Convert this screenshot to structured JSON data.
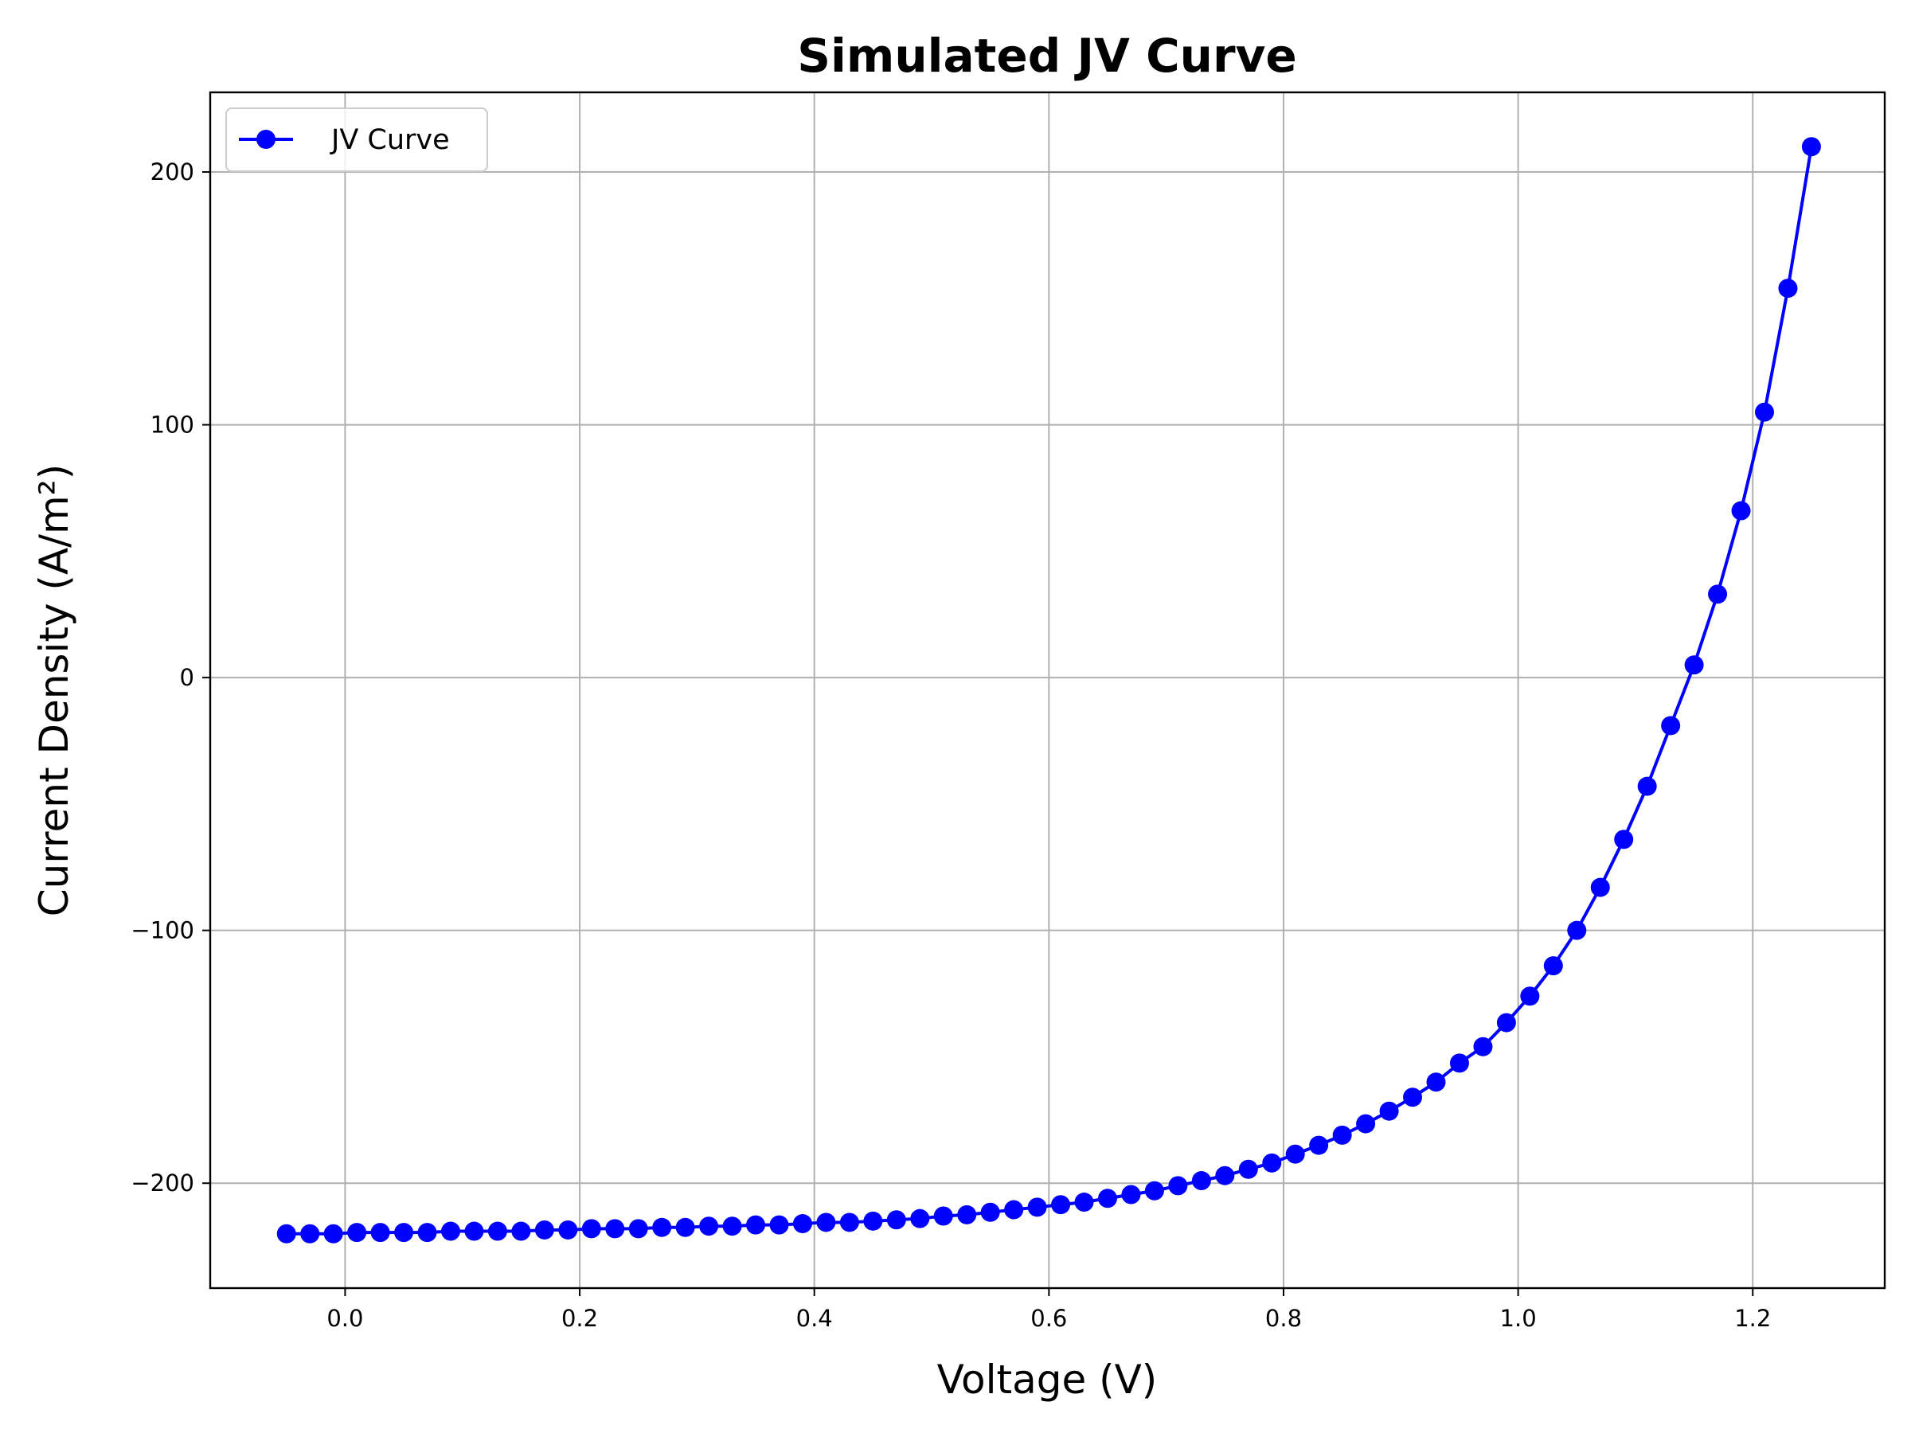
{
  "chart_data": {
    "type": "line",
    "title": "Simulated JV Curve",
    "xlabel": "Voltage (V)",
    "ylabel": "Current Density (A/m²)",
    "xlim": [
      -0.115,
      1.3125
    ],
    "ylim": [
      -241.5,
      231.5
    ],
    "xticks": [
      0.0,
      0.2,
      0.4,
      0.6,
      0.8,
      1.0,
      1.2
    ],
    "xtick_labels": [
      "0.0",
      "0.2",
      "0.4",
      "0.6",
      "0.8",
      "1.0",
      "1.2"
    ],
    "yticks": [
      -200,
      -100,
      0,
      100,
      200
    ],
    "ytick_labels": [
      "−200",
      "−100",
      "0",
      "100",
      "200"
    ],
    "grid": true,
    "legend_position": "upper-left",
    "colors": {
      "series": "#0000ff",
      "grid": "#b0b0b0",
      "frame": "#000000"
    },
    "series": [
      {
        "name": "JV Curve",
        "marker": "circle",
        "x": [
          -0.05,
          -0.03,
          -0.01,
          0.01,
          0.03,
          0.05,
          0.07,
          0.09,
          0.11,
          0.13,
          0.15,
          0.17,
          0.19,
          0.21,
          0.23,
          0.25,
          0.27,
          0.29,
          0.31,
          0.33,
          0.35,
          0.37,
          0.39,
          0.41,
          0.43,
          0.45,
          0.47,
          0.49,
          0.51,
          0.53,
          0.55,
          0.57,
          0.59,
          0.61,
          0.63,
          0.65,
          0.67,
          0.69,
          0.71,
          0.73,
          0.75,
          0.77,
          0.79,
          0.81,
          0.83,
          0.85,
          0.87,
          0.89,
          0.91,
          0.93,
          0.95,
          0.97,
          0.99,
          1.01,
          1.03,
          1.05,
          1.07,
          1.09,
          1.11,
          1.13,
          1.15,
          1.17,
          1.19,
          1.21,
          1.23,
          1.25
        ],
        "y": [
          -220,
          -220,
          -220,
          -219.5,
          -219.5,
          -219.5,
          -219.5,
          -219,
          -219,
          -219,
          -219,
          -218.5,
          -218.5,
          -218,
          -218,
          -218,
          -217.5,
          -217.5,
          -217,
          -217,
          -216.5,
          -216.5,
          -216,
          -215.5,
          -215.5,
          -215,
          -214.5,
          -214,
          -213,
          -212.5,
          -211.5,
          -210.5,
          -209.5,
          -208.5,
          -207.5,
          -206,
          -204.5,
          -203,
          -201,
          -199,
          -197,
          -194.5,
          -192,
          -188.5,
          -185,
          -181,
          -176.5,
          -171.5,
          -166,
          -160,
          -152.5,
          -146,
          -136.5,
          -126,
          -114,
          -100,
          -83,
          -64,
          -43,
          -19,
          5,
          33,
          66,
          105,
          154,
          210
        ]
      }
    ]
  }
}
